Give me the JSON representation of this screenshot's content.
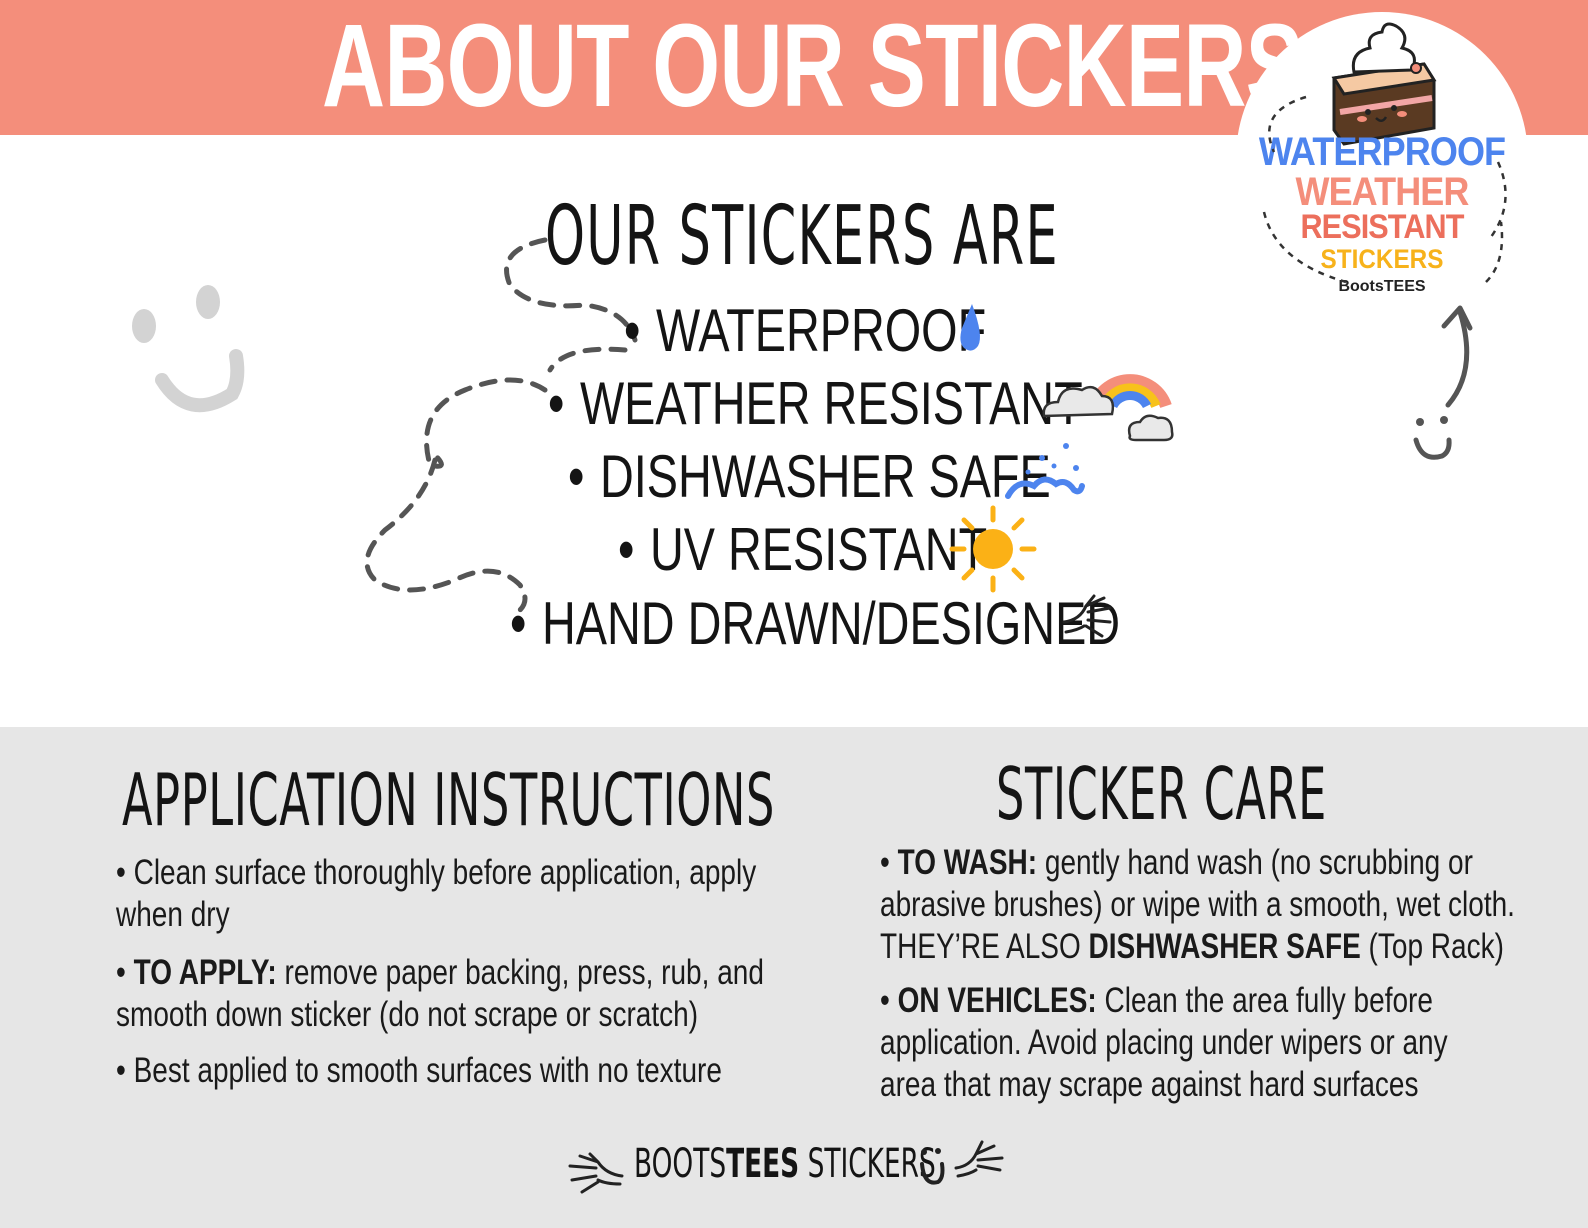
{
  "header": {
    "title": "ABOUT OUR STICKERS"
  },
  "badge": {
    "line1": "WATERPROOF",
    "line2": "WEATHER",
    "line3": "RESISTANT",
    "line4": "STICKERS",
    "brand": "BootsTEES"
  },
  "main": {
    "heading": "OUR STICKERS ARE",
    "bullet": "•",
    "features": [
      {
        "label": "WATERPROOF",
        "icon": "water-drop-icon"
      },
      {
        "label": "WEATHER RESISTANT",
        "icon": "rainbow-cloud-icon"
      },
      {
        "label": "DISHWASHER SAFE",
        "icon": "water-splash-icon"
      },
      {
        "label": "UV RESISTANT",
        "icon": "sun-icon"
      },
      {
        "label": "HAND DRAWN/DESIGNED",
        "icon": "doodle-hand-icon"
      }
    ]
  },
  "application": {
    "title": "APPLICATION INSTRUCTIONS",
    "items": [
      {
        "bold": "",
        "text": "Clean surface thoroughly before application, apply when dry"
      },
      {
        "bold": "TO APPLY:",
        "text": " remove paper backing, press, rub, and smooth down sticker (do not scrape or scratch)"
      },
      {
        "bold": "",
        "text": "Best applied to smooth surfaces with no texture"
      }
    ]
  },
  "care": {
    "title": "STICKER CARE",
    "wash_bold": "TO WASH:",
    "wash_text": " gently hand wash (no scrubbing or abrasive brushes) or wipe with a smooth, wet cloth. THEY’RE ALSO ",
    "wash_bold2": "DISHWASHER SAFE",
    "wash_text2": " (Top Rack)",
    "vehicles_bold": "ON VEHICLES:",
    "vehicles_text": " Clean the area fully before application. Avoid placing under wipers or any area that may scrape against hard surfaces"
  },
  "footer": {
    "brand_part1": "BOOTS",
    "brand_part2": "TEES",
    "brand_part3": " STICKERS"
  },
  "colors": {
    "header_bg": "#f48e7b",
    "info_bg": "#e6e6e6",
    "blue": "#4d84ee",
    "coral": "#f48e7b",
    "yellow": "#f7b21b",
    "sun": "#fbb116"
  }
}
